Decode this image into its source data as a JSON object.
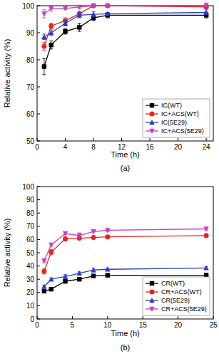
{
  "chart_data": [
    {
      "type": "line",
      "title": "(a)",
      "x_label": "Time (h)",
      "y_label": "Relative activity (%)",
      "x": [
        1,
        2,
        4,
        6,
        8,
        10,
        24
      ],
      "xlim": [
        0,
        25
      ],
      "xticks": [
        0,
        4,
        8,
        12,
        16,
        20,
        24
      ],
      "ylim": [
        50,
        100
      ],
      "yticks": [
        50,
        60,
        70,
        80,
        90,
        100
      ],
      "legend": "lower right",
      "series": [
        {
          "name": "IC(WT)",
          "color": "#000000",
          "marker": "square",
          "values": [
            77.5,
            85.5,
            90.5,
            92,
            95.5,
            96.5,
            96.5
          ],
          "errors": [
            3,
            1.5,
            1,
            1.5,
            1,
            1,
            1
          ]
        },
        {
          "name": "IC+ACS(WT)",
          "color": "#e8261c",
          "marker": "circle",
          "values": [
            85,
            92.5,
            94.5,
            97,
            100,
            100,
            99.5
          ],
          "errors": [
            1.5,
            1,
            1,
            1,
            0.5,
            0.5,
            1
          ]
        },
        {
          "name": "IC(5E29)",
          "color": "#2b3cc9",
          "marker": "triangle-up",
          "values": [
            88.5,
            90,
            93.5,
            96.5,
            96.8,
            97,
            97.5
          ],
          "errors": [
            1,
            1,
            1,
            1,
            1,
            0.5,
            0.5
          ]
        },
        {
          "name": "IC+ACS(5E29)",
          "color": "#c83cc8",
          "marker": "triangle-down",
          "values": [
            97,
            99,
            99,
            99.5,
            100,
            100,
            100
          ],
          "errors": [
            1.5,
            1,
            0.5,
            0.5,
            0.5,
            0.5,
            1
          ]
        }
      ]
    },
    {
      "type": "line",
      "title": "(b)",
      "x_label": "Time (h)",
      "y_label": "Relative activity (%)",
      "x": [
        1,
        2,
        4,
        6,
        8,
        10,
        24
      ],
      "xlim": [
        0,
        25
      ],
      "xticks": [
        0,
        5,
        10,
        15,
        20,
        25
      ],
      "ylim": [
        0,
        100
      ],
      "yticks": [
        0,
        10,
        20,
        30,
        40,
        50,
        60,
        70,
        80,
        90,
        100
      ],
      "legend": "lower right",
      "series": [
        {
          "name": "CR(WT)",
          "color": "#000000",
          "marker": "square",
          "values": [
            21,
            22.5,
            28.5,
            30,
            32.5,
            33,
            33
          ],
          "errors": [
            1,
            1,
            1.5,
            1,
            1,
            1,
            1.5
          ]
        },
        {
          "name": "CR+ACS(WT)",
          "color": "#e8261c",
          "marker": "circle",
          "values": [
            36,
            50.5,
            60.5,
            61,
            61.5,
            62,
            63
          ],
          "errors": [
            2,
            2,
            1.5,
            1,
            1,
            1,
            1
          ]
        },
        {
          "name": "CR(5E29)",
          "color": "#2b3cc9",
          "marker": "triangle-up",
          "values": [
            24.5,
            30,
            32,
            34.5,
            37,
            37.5,
            38.5
          ],
          "errors": [
            1,
            1,
            1.5,
            1,
            1.5,
            1,
            1
          ]
        },
        {
          "name": "CR+ACS(5E29)",
          "color": "#c83cc8",
          "marker": "triangle-down",
          "values": [
            44,
            56,
            64.5,
            63,
            66,
            67,
            68
          ],
          "errors": [
            1.5,
            1,
            1,
            2,
            1,
            1,
            1
          ]
        }
      ]
    }
  ]
}
